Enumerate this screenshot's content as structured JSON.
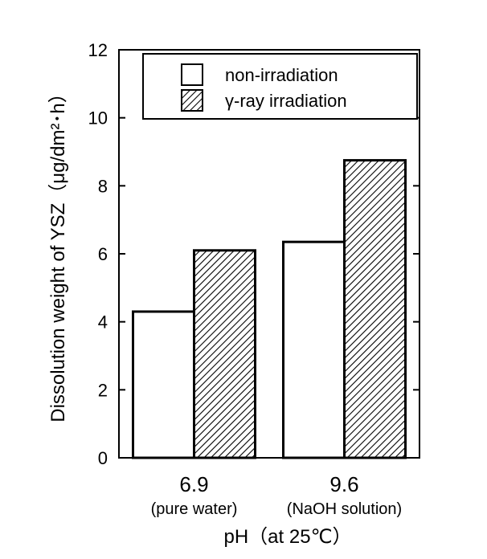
{
  "chart_data": {
    "type": "bar",
    "xlabel": "pH（at 25℃）",
    "ylabel": "Dissolution weight of YSZ（μg/dm²･h）",
    "ylim": [
      0,
      12
    ],
    "yticks": [
      0,
      2,
      4,
      6,
      8,
      10,
      12
    ],
    "categories": [
      {
        "label": "6.9",
        "sublabel": "(pure water)"
      },
      {
        "label": "9.6",
        "sublabel": "(NaOH solution)"
      }
    ],
    "series": [
      {
        "name": "non-irradiation",
        "values": [
          4.3,
          6.35
        ],
        "fill": "#ffffff"
      },
      {
        "name": "γ-ray irradiation",
        "values": [
          6.1,
          8.75
        ],
        "fill": "hatched"
      }
    ],
    "legend_position": "top-right",
    "grid": false
  }
}
